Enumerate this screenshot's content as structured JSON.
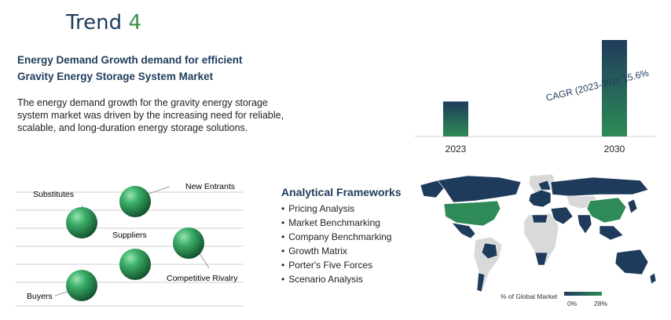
{
  "trend": {
    "word": "Trend",
    "number": "4"
  },
  "headline": "Energy Demand Growth demand for efficient Gravity Energy Storage System Market",
  "body": "The energy demand growth for the gravity energy storage system market was driven by the increasing need for reliable, scalable, and long-duration energy storage solutions.",
  "chart_data": {
    "type": "bar",
    "categories": [
      "2023",
      "2030"
    ],
    "values": [
      1,
      2.76
    ],
    "annotation": "CAGR (2023-30)= 15.6%",
    "colors": {
      "top": "#1f3b5c",
      "bottom": "#2e8b57"
    }
  },
  "porter": {
    "new_entrants": "New Entrants",
    "substitutes": "Substitutes",
    "suppliers": "Suppliers",
    "competitive_rivalry": "Competitive Rivalry",
    "buyers": "Buyers",
    "sphere_color": "#2e8b57"
  },
  "frameworks": {
    "title": "Analytical Frameworks",
    "items": [
      "Pricing Analysis",
      "Market Benchmarking",
      "Company Benchmarking",
      "Growth Matrix",
      "Porter's Five Forces",
      "Scenario Analysis"
    ]
  },
  "map": {
    "legend_label": "% of Global Market",
    "legend_min": "0%",
    "legend_max": "28%",
    "dark_color": "#1f3b5c",
    "highlight_color": "#2e8b57",
    "neutral_color": "#d9d9d9"
  }
}
